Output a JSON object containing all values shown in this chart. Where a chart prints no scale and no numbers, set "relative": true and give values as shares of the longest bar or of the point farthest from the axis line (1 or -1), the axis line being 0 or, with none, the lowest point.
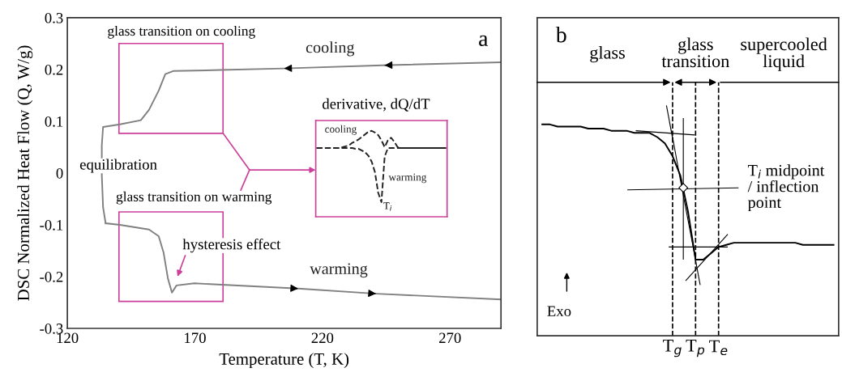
{
  "chart_data": [
    {
      "type": "line",
      "xlabel": "Temperature (T, K)",
      "ylabel": "DSC Normalized Heat Flow (Q, W/g)",
      "xlim": [
        120,
        290
      ],
      "xticks": [
        120,
        170,
        220,
        270
      ],
      "ylim": [
        -0.3,
        0.3
      ],
      "yticks": [
        {
          "value": -0.3,
          "label": "-0.3"
        },
        {
          "value": -0.2,
          "label": "-0.2"
        },
        {
          "value": -0.1,
          "label": "-0.1"
        },
        0,
        0.1,
        0.2,
        0.3
      ],
      "series": [
        {
          "name": "cooling",
          "color": "#808080",
          "x": [
            290,
            243.5,
            205,
            180,
            161.5,
            158.4,
            155.8,
            152,
            148.8,
            140.6,
            134,
            133.5,
            133.5,
            134,
            135
          ],
          "values": [
            0.214,
            0.208,
            0.202,
            0.199,
            0.197,
            0.191,
            0.159,
            0.122,
            0.102,
            0.094,
            0.089,
            0.053,
            -0.003,
            -0.066,
            -0.097
          ]
        },
        {
          "name": "warming",
          "color": "#808080",
          "x": [
            135,
            140.6,
            152,
            155.8,
            157.7,
            159.4,
            161,
            162.8,
            169.8,
            210.5,
            241,
            290
          ],
          "values": [
            -0.097,
            -0.1,
            -0.109,
            -0.122,
            -0.153,
            -0.203,
            -0.231,
            -0.217,
            -0.213,
            -0.223,
            -0.233,
            -0.244
          ]
        }
      ],
      "annotations": [
        "a",
        "glass transition on cooling",
        "glass transition on warming",
        "equilibration",
        "derivative, dQ/dT",
        "hysteresis effect"
      ]
    },
    {
      "type": "line",
      "relative": true,
      "tick_labels": false,
      "line_style": "dashed",
      "categories": [
        null,
        null,
        null,
        null,
        null,
        null,
        null,
        null,
        null,
        null,
        null,
        null,
        null,
        null,
        null,
        null,
        null,
        null,
        null,
        null,
        null,
        null,
        null,
        null,
        null,
        null,
        null,
        null,
        null,
        null,
        null,
        null,
        null,
        null,
        null,
        null,
        null,
        null,
        null,
        null,
        null
      ],
      "series": [
        {
          "name": "cooling",
          "color": "#222222",
          "values": [
            0.8,
            0.8,
            0.8,
            0.8,
            0.8,
            0.8,
            0.8,
            0.8,
            0.81,
            0.82,
            0.83,
            0.86,
            0.88,
            0.9,
            0.93,
            0.96,
            0.99,
            1,
            0.98,
            0.95,
            0.89,
            0.81,
            0.89,
            0.92,
            0.87,
            0.81,
            0.8,
            0.8,
            0.8,
            0.8,
            0.8,
            0.8,
            0.8,
            0.8,
            0.8,
            0.8,
            0.8,
            0.8,
            0.8,
            0.8,
            0.8
          ]
        },
        {
          "name": "warming",
          "color": "#222222",
          "values": [
            0.8,
            0.8,
            0.8,
            0.8,
            0.8,
            0.8,
            0.8,
            0.8,
            0.8,
            0.8,
            0.8,
            0.8,
            0.79,
            0.79,
            0.77,
            0.75,
            0.71,
            0.64,
            0.52,
            0.28,
            0.17,
            0.7,
            0.8,
            0.8,
            0.8,
            0.8,
            0.8,
            0.8,
            0.8,
            0.8,
            0.8,
            0.8,
            0.8,
            0.8,
            0.8,
            0.8,
            0.8,
            0.8,
            0.8,
            0.8,
            0.8
          ]
        }
      ],
      "annotations": [
        "T$_{i}$"
      ]
    },
    {
      "type": "line",
      "relative": true,
      "tick_labels": "x",
      "grid": "x",
      "categories": [
        null,
        null,
        null,
        null,
        null,
        null,
        null,
        null,
        null,
        null,
        null,
        null,
        null,
        null,
        null,
        null,
        null,
        "T$_{g}$",
        null,
        null,
        "T$_{p}$",
        null,
        null,
        "T$_{e}$",
        null,
        null,
        null,
        null,
        null,
        null,
        null,
        null,
        null,
        null,
        null,
        null,
        null,
        null,
        null
      ],
      "series": [
        {
          "color": "#000000",
          "values": [
            1.0,
            1.0,
            0.99,
            0.99,
            0.99,
            0.99,
            0.98,
            0.98,
            0.98,
            0.97,
            0.97,
            0.97,
            0.96,
            0.96,
            0.96,
            0.94,
            0.91,
            0.85,
            0.76,
            0.59,
            0.36,
            0.36,
            0.39,
            0.42,
            0.43,
            0.44,
            0.44,
            0.44,
            0.44,
            0.44,
            0.44,
            0.44,
            0.44,
            0.44,
            0.43,
            0.43,
            0.43,
            0.43,
            0.43
          ]
        },
        {
          "color": "#000000",
          "values": [
            null,
            null,
            null,
            null,
            null,
            null,
            null,
            null,
            null,
            null,
            null,
            null,
            null,
            null,
            null,
            null,
            null,
            0.94,
            0.74,
            0.55,
            0.36,
            null,
            null,
            null,
            null,
            null,
            null,
            null,
            null,
            null,
            null,
            null,
            null,
            null,
            null,
            null,
            null,
            null,
            null
          ]
        }
      ],
      "annotations": [
        "b",
        "glass",
        "glass\ntransition",
        "supercooled\nliquid",
        "T$_{i}$ midpoint\n/ inflection\npoint",
        "Exo"
      ]
    }
  ]
}
